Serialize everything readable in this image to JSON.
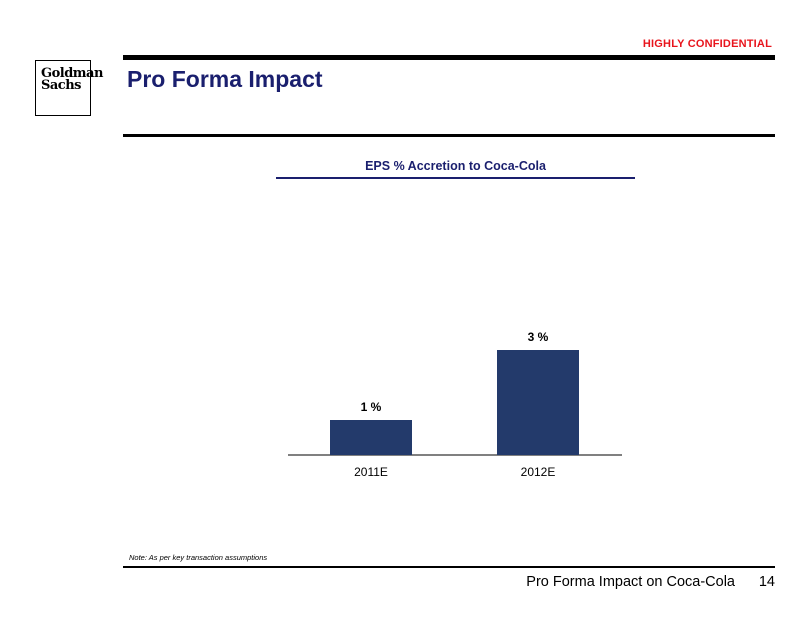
{
  "header": {
    "confidential_label": "HIGHLY CONFIDENTIAL",
    "logo_line1": "Goldman",
    "logo_line2": "Sachs",
    "title": "Pro Forma Impact"
  },
  "chart_data": {
    "type": "bar",
    "title": "EPS % Accretion to Coca-Cola",
    "categories": [
      "2011E",
      "2012E"
    ],
    "values": [
      1,
      3
    ],
    "value_labels": [
      "1 %",
      "3 %"
    ],
    "bar_color": "#233a6b",
    "title_color": "#1a1f6e",
    "grid": false,
    "legend": "none"
  },
  "footer": {
    "note": "Note: As per key transaction assumptions",
    "section_label": "Pro Forma Impact on Coca-Cola",
    "page_number": "14"
  },
  "colors": {
    "accent_red": "#e8141c",
    "title_navy": "#1a1f6e"
  }
}
